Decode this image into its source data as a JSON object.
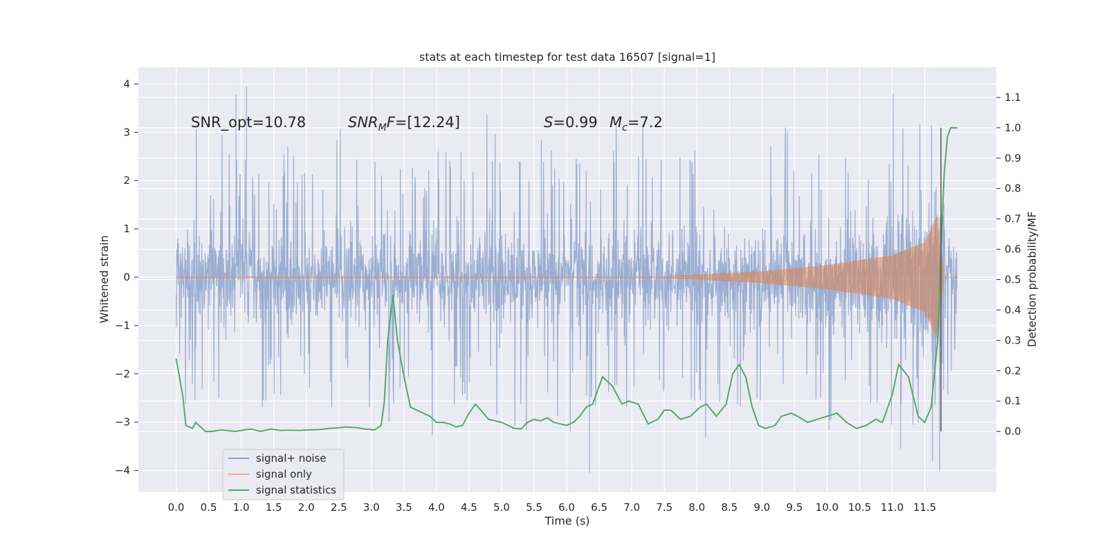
{
  "chart_data": {
    "type": "line",
    "title": "stats at each timestep for test data 16507 [signal=1]",
    "xlabel": "Time (s)",
    "ylabel": "Whitened strain",
    "y2label": "Detection probability/MF",
    "xlim": [
      -0.58,
      12.6
    ],
    "ylim": [
      -4.45,
      4.35
    ],
    "y2lim": [
      -0.2,
      1.2
    ],
    "x_ticks": [
      "0.0",
      "0.5",
      "1.0",
      "1.5",
      "2.0",
      "2.5",
      "3.0",
      "3.5",
      "4.0",
      "4.5",
      "5.0",
      "5.5",
      "6.0",
      "6.5",
      "7.0",
      "7.5",
      "8.0",
      "8.5",
      "9.0",
      "9.5",
      "10.0",
      "10.5",
      "11.0",
      "11.5"
    ],
    "y_ticks": [
      "4",
      "3",
      "2",
      "1",
      "0",
      "−1",
      "−2",
      "−3",
      "−4"
    ],
    "y2_ticks": [
      "1.1",
      "1.0",
      "0.9",
      "0.8",
      "0.7",
      "0.6",
      "0.5",
      "0.4",
      "0.3",
      "0.2",
      "0.1",
      "0.0"
    ],
    "grid": true,
    "legend_position": "lower-left",
    "annotations": {
      "snr_opt": "SNR_opt=10.78",
      "snr_mf_prefix": "SNR",
      "snr_mf_sub": "M",
      "snr_mf_suffix": "F",
      "snr_mf_value": "=[12.24]",
      "s_label": "S",
      "s_value": "=0.99",
      "mc_label": "M",
      "mc_sub": "c",
      "mc_value": "=7.2"
    },
    "merger_time": 11.75,
    "colors": {
      "background": "#eaeaf2",
      "grid": "#ffffff",
      "noise": "#4c72b0",
      "signal": "#dd8452",
      "stat": "#55a868",
      "marker": "#555555"
    },
    "series": [
      {
        "name": "signal+ noise",
        "kind": "whitened_noise",
        "t_range": [
          0.0,
          12.0
        ],
        "envelope_typical": [
          -1.3,
          1.3
        ],
        "peak_max": 3.95,
        "peak_min": -4.05
      },
      {
        "name": "signal only",
        "kind": "chirp",
        "t_range": [
          0.0,
          12.0
        ],
        "amplitude_at_t": [
          [
            7.5,
            0.02
          ],
          [
            9.0,
            0.12
          ],
          [
            10.0,
            0.25
          ],
          [
            11.0,
            0.45
          ],
          [
            11.5,
            0.72
          ],
          [
            11.7,
            1.3
          ],
          [
            11.8,
            0.0
          ]
        ]
      },
      {
        "name": "signal statistics",
        "kind": "probability",
        "x": [
          0.0,
          0.1,
          0.15,
          0.25,
          0.3,
          0.45,
          0.55,
          0.7,
          0.9,
          1.0,
          1.15,
          1.3,
          1.45,
          1.6,
          1.75,
          1.9,
          2.05,
          2.2,
          2.35,
          2.5,
          2.6,
          2.75,
          2.9,
          3.05,
          3.15,
          3.2,
          3.25,
          3.33,
          3.4,
          3.5,
          3.6,
          3.7,
          3.8,
          3.9,
          4.0,
          4.1,
          4.2,
          4.3,
          4.4,
          4.5,
          4.6,
          4.7,
          4.8,
          4.9,
          5.0,
          5.1,
          5.2,
          5.3,
          5.4,
          5.5,
          5.6,
          5.7,
          5.8,
          5.9,
          6.0,
          6.1,
          6.2,
          6.3,
          6.4,
          6.55,
          6.7,
          6.85,
          6.95,
          7.1,
          7.25,
          7.4,
          7.5,
          7.6,
          7.75,
          7.9,
          8.05,
          8.15,
          8.3,
          8.45,
          8.55,
          8.65,
          8.75,
          8.85,
          8.95,
          9.05,
          9.2,
          9.3,
          9.45,
          9.55,
          9.7,
          9.85,
          10.0,
          10.15,
          10.3,
          10.45,
          10.6,
          10.75,
          10.85,
          11.0,
          11.1,
          11.25,
          11.4,
          11.5,
          11.6,
          11.7,
          11.75,
          11.8,
          11.85,
          11.9,
          11.95,
          12.0
        ],
        "y": [
          0.24,
          0.12,
          0.02,
          0.01,
          0.03,
          0.0,
          0.0,
          0.005,
          0.0,
          0.003,
          0.008,
          0.0,
          0.008,
          0.003,
          0.004,
          0.003,
          0.005,
          0.006,
          0.01,
          0.012,
          0.015,
          0.013,
          0.008,
          0.005,
          0.02,
          0.1,
          0.3,
          0.45,
          0.3,
          0.18,
          0.08,
          0.07,
          0.06,
          0.05,
          0.03,
          0.03,
          0.025,
          0.015,
          0.02,
          0.06,
          0.09,
          0.065,
          0.04,
          0.035,
          0.03,
          0.02,
          0.01,
          0.008,
          0.03,
          0.04,
          0.035,
          0.045,
          0.03,
          0.025,
          0.02,
          0.03,
          0.05,
          0.08,
          0.09,
          0.18,
          0.15,
          0.09,
          0.1,
          0.09,
          0.025,
          0.04,
          0.07,
          0.07,
          0.04,
          0.05,
          0.08,
          0.09,
          0.05,
          0.09,
          0.19,
          0.22,
          0.18,
          0.08,
          0.02,
          0.01,
          0.02,
          0.05,
          0.06,
          0.05,
          0.03,
          0.04,
          0.05,
          0.06,
          0.03,
          0.01,
          0.02,
          0.04,
          0.03,
          0.12,
          0.22,
          0.18,
          0.05,
          0.03,
          0.08,
          0.3,
          0.6,
          0.85,
          0.97,
          1.0,
          1.0,
          1.0
        ]
      }
    ]
  }
}
